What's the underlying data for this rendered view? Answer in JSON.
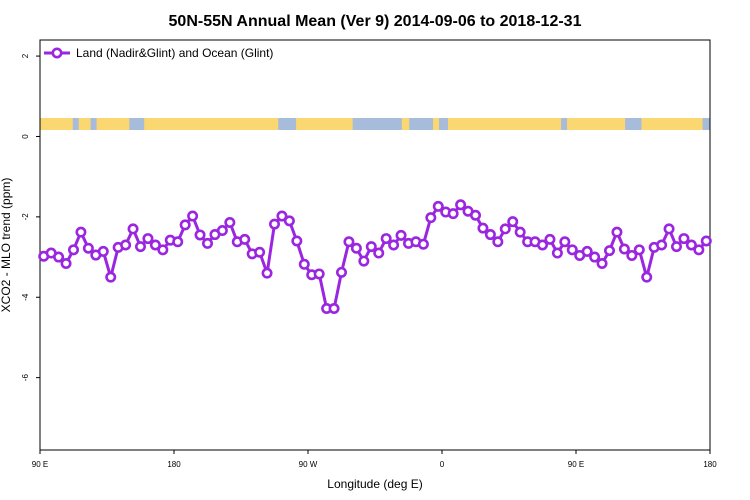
{
  "chart_data": {
    "type": "line",
    "title": "50N-55N Annual Mean (Ver 9)   2014-09-06 to 2018-12-31",
    "xlabel": "Longitude (deg E)",
    "ylabel": "XCO2 - MLO trend (ppm)",
    "xlim": [
      90,
      540
    ],
    "ylim": [
      -7.8,
      2.4
    ],
    "xticks": [
      {
        "value": 90,
        "label": "90 E"
      },
      {
        "value": 180,
        "label": "180"
      },
      {
        "value": 270,
        "label": "90 W"
      },
      {
        "value": 360,
        "label": "0"
      },
      {
        "value": 450,
        "label": "90 E"
      },
      {
        "value": 540,
        "label": "180"
      }
    ],
    "yticks": [
      {
        "value": 2,
        "label": "2"
      },
      {
        "value": 0,
        "label": "0"
      },
      {
        "value": -2,
        "label": "-2"
      },
      {
        "value": -4,
        "label": "-4"
      },
      {
        "value": -6,
        "label": "-6"
      }
    ],
    "grid": false,
    "legend": {
      "position": "top-left"
    },
    "colors": {
      "series": "#9b26e0",
      "land": "#fbd771",
      "ocean": "#a7bbdb"
    },
    "series": [
      {
        "name": "Land (Nadir&Glint) and Ocean (Glint)",
        "x": [
          92.5,
          97.5,
          102.5,
          107.5,
          112.5,
          117.5,
          122.5,
          127.5,
          132.5,
          137.5,
          142.5,
          147.5,
          152.5,
          157.5,
          162.5,
          167.5,
          172.5,
          177.5,
          182.5,
          187.5,
          192.5,
          197.5,
          202.5,
          207.5,
          212.5,
          217.5,
          222.5,
          227.5,
          232.5,
          237.5,
          242.5,
          247.5,
          252.5,
          257.5,
          262.5,
          267.5,
          272.5,
          277.5,
          282.5,
          287.5,
          292.5,
          297.5,
          302.5,
          307.5,
          312.5,
          317.5,
          322.5,
          327.5,
          332.5,
          337.5,
          342.5,
          347.5,
          352.5,
          357.5,
          362.5,
          367.5,
          372.5,
          377.5,
          382.5,
          387.5,
          392.5,
          397.5,
          402.5,
          407.5,
          412.5,
          417.5,
          422.5,
          427.5,
          432.5,
          437.5,
          442.5,
          447.5,
          452.5,
          457.5,
          462.5,
          467.5,
          472.5,
          477.5,
          482.5,
          487.5,
          492.5,
          497.5,
          502.5,
          507.5,
          512.5,
          517.5,
          522.5,
          527.5,
          532.5,
          537.5
        ],
        "values": [
          -2.98,
          -2.9,
          -3.0,
          -3.16,
          -2.82,
          -2.38,
          -2.78,
          -2.95,
          -2.86,
          -3.5,
          -2.76,
          -2.7,
          -2.3,
          -2.74,
          -2.54,
          -2.7,
          -2.82,
          -2.58,
          -2.62,
          -2.2,
          -1.98,
          -2.45,
          -2.66,
          -2.44,
          -2.34,
          -2.14,
          -2.62,
          -2.56,
          -2.92,
          -2.88,
          -3.4,
          -2.18,
          -1.98,
          -2.1,
          -2.6,
          -3.18,
          -3.44,
          -3.42,
          -4.28,
          -4.28,
          -3.38,
          -2.62,
          -2.78,
          -3.1,
          -2.74,
          -2.9,
          -2.54,
          -2.7,
          -2.46,
          -2.66,
          -2.62,
          -2.68,
          -2.02,
          -1.74,
          -1.88,
          -1.92,
          -1.7,
          -1.86,
          -1.96,
          -2.28,
          -2.44,
          -2.62,
          -2.3,
          -2.12,
          -2.38,
          -2.62,
          -2.62,
          -2.7,
          -2.56,
          -2.9,
          -2.62,
          -2.82,
          -2.96,
          -2.86,
          -3.0,
          -3.16,
          -2.84,
          -2.38,
          -2.8,
          -2.96,
          -2.82,
          -3.5,
          -2.76,
          -2.7,
          -2.3,
          -2.74,
          -2.54,
          -2.7,
          -2.82,
          -2.6
        ]
      }
    ]
  }
}
